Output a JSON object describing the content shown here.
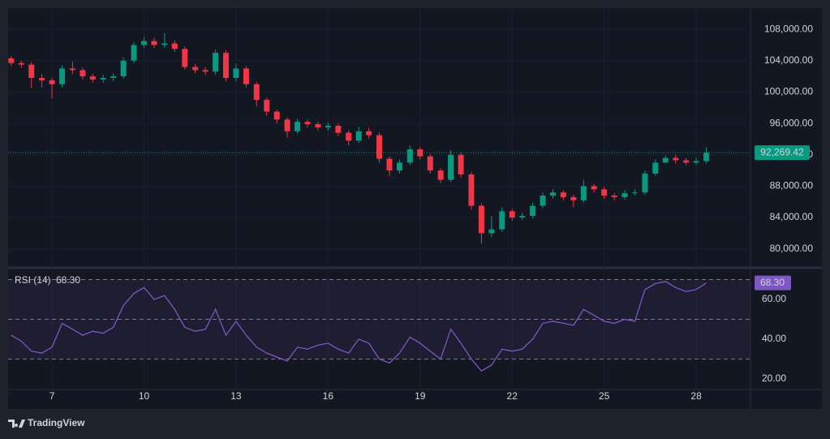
{
  "chart_data": {
    "type": "candlestick",
    "x": [
      5.67,
      6,
      6.33,
      6.67,
      7,
      7.33,
      7.67,
      8,
      8.33,
      8.67,
      9,
      9.33,
      9.67,
      10,
      10.33,
      10.67,
      11,
      11.33,
      11.67,
      12,
      12.33,
      12.67,
      13,
      13.33,
      13.67,
      14,
      14.33,
      14.67,
      15,
      15.33,
      15.67,
      16,
      16.33,
      16.67,
      17,
      17.33,
      17.67,
      18,
      18.33,
      18.67,
      19,
      19.33,
      19.67,
      20,
      20.33,
      20.67,
      21,
      21.33,
      21.67,
      22,
      22.33,
      22.67,
      23,
      23.33,
      23.67,
      24,
      24.33,
      24.67,
      25,
      25.33,
      25.67,
      26,
      26.33,
      26.67,
      27,
      27.33,
      27.67,
      28,
      28.33
    ],
    "open": [
      104300,
      103700,
      103500,
      101800,
      101500,
      101000,
      103000,
      102800,
      102000,
      101600,
      101800,
      102000,
      104000,
      106000,
      106500,
      106000,
      106200,
      105500,
      103200,
      102800,
      102600,
      105000,
      101800,
      103000,
      101000,
      99000,
      97500,
      96500,
      95000,
      96200,
      95900,
      95500,
      95700,
      94800,
      93800,
      95000,
      94500,
      91500,
      90000,
      91000,
      92700,
      91800,
      90000,
      88800,
      92000,
      89500,
      85500,
      82000,
      82500,
      84800,
      84000,
      84200,
      85500,
      86800,
      87200,
      86600,
      86200,
      88000,
      87600,
      86800,
      86600,
      87100,
      87200,
      89600,
      91000,
      91600,
      91300,
      91000,
      91200
    ],
    "high": [
      104600,
      104000,
      103800,
      102300,
      101800,
      103400,
      103900,
      103100,
      102300,
      102200,
      102400,
      104400,
      106400,
      107000,
      106900,
      107500,
      106600,
      105800,
      103600,
      103200,
      105400,
      105300,
      103600,
      103300,
      101300,
      99300,
      97800,
      96800,
      96600,
      96500,
      96200,
      96100,
      96000,
      95100,
      95600,
      95400,
      94800,
      91800,
      91400,
      93200,
      93000,
      92100,
      90300,
      92600,
      92300,
      89800,
      85800,
      84200,
      85300,
      85100,
      84600,
      85900,
      87200,
      87600,
      87500,
      86900,
      88800,
      88300,
      87900,
      87100,
      87500,
      87600,
      90000,
      91400,
      91900,
      92000,
      91600,
      91600,
      93000
    ],
    "low": [
      103300,
      103100,
      100500,
      100600,
      99200,
      100600,
      102300,
      101600,
      101200,
      101200,
      101400,
      101700,
      103700,
      105600,
      105600,
      105600,
      105100,
      102900,
      102400,
      102200,
      102200,
      101400,
      101400,
      100600,
      98200,
      97000,
      96000,
      94200,
      94700,
      95500,
      95100,
      95100,
      94400,
      93200,
      93500,
      94100,
      91000,
      89300,
      89600,
      90700,
      91400,
      89600,
      88400,
      88500,
      89100,
      85000,
      80700,
      81500,
      82200,
      83600,
      83700,
      83900,
      85200,
      86400,
      86200,
      85300,
      85900,
      87200,
      86400,
      86200,
      86300,
      86800,
      86900,
      89300,
      91200,
      90900,
      90700,
      90700,
      90900
    ],
    "close": [
      103700,
      103500,
      101800,
      101500,
      101000,
      103000,
      102800,
      102000,
      101600,
      101800,
      102000,
      104000,
      106000,
      106500,
      106000,
      106200,
      105500,
      103200,
      102800,
      102600,
      105000,
      101800,
      103000,
      101000,
      99000,
      97500,
      96500,
      95000,
      96200,
      95900,
      95500,
      95700,
      94800,
      93800,
      95000,
      94500,
      91500,
      90000,
      91000,
      92700,
      91800,
      90000,
      88800,
      92000,
      89500,
      85500,
      82000,
      82500,
      84800,
      84000,
      84200,
      85500,
      86800,
      87200,
      86600,
      86200,
      88000,
      87600,
      86800,
      86600,
      87100,
      87200,
      89600,
      91000,
      91600,
      91300,
      91000,
      91200,
      92269.42
    ],
    "up_color": "#089981",
    "down_color": "#f23645",
    "grid": true,
    "xlim": [
      5.57,
      29.77
    ],
    "xticks": [
      7,
      10,
      13,
      16,
      19,
      22,
      25,
      28
    ],
    "ylim": [
      77800,
      110700
    ],
    "yticks": [
      {
        "value": 80000,
        "label": "80,000.00"
      },
      {
        "value": 84000,
        "label": "84,000.00"
      },
      {
        "value": 88000,
        "label": "88,000.00"
      },
      {
        "value": 92000,
        "label": "92,000.00"
      },
      {
        "value": 96000,
        "label": "96,000.00"
      },
      {
        "value": 100000,
        "label": "100,000.00"
      },
      {
        "value": 104000,
        "label": "104,000.00"
      },
      {
        "value": 108000,
        "label": "108,000.00"
      }
    ],
    "last_price": {
      "value": 92269.42,
      "label": "92,269.42"
    },
    "rsi": {
      "type": "line",
      "name": "RSI (14)",
      "color": "#7e57c2",
      "values": [
        42,
        39,
        34,
        33,
        36,
        48,
        45,
        42,
        44,
        43,
        46,
        57,
        63,
        66,
        60,
        62,
        55,
        46,
        44,
        45,
        55,
        42,
        49,
        42,
        36,
        33,
        31,
        29,
        36,
        35,
        37,
        38,
        35,
        33,
        40,
        38,
        30,
        28,
        33,
        41,
        38,
        34,
        30,
        45,
        38,
        30,
        24,
        27,
        35,
        34,
        35,
        40,
        48,
        49,
        48,
        47,
        55,
        52,
        49,
        48,
        50,
        49,
        65,
        68,
        69,
        66,
        64,
        65,
        68.3
      ],
      "last": {
        "value": 68.3,
        "label": "68.30"
      },
      "ylim": [
        15.5,
        74.7
      ],
      "yticks": [
        {
          "value": 20,
          "label": "20.00"
        },
        {
          "value": 40,
          "label": "40.00"
        },
        {
          "value": 60,
          "label": "60.00"
        }
      ],
      "levels": [
        30,
        50,
        70
      ]
    }
  },
  "brand": "TradingView"
}
